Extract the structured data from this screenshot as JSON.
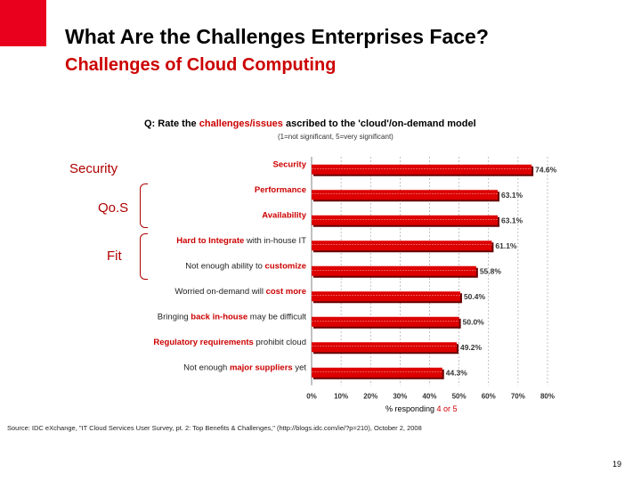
{
  "slide": {
    "title": "What Are the Challenges Enterprises Face?",
    "subtitle": "Challenges of Cloud Computing",
    "source": "Source: IDC eXchange, \"IT Cloud Services User Survey, pt. 2: Top Benefits & Challenges,\" (http://blogs.idc.com/ie/?p=210), October 2, 2008",
    "page_number": "19",
    "side_labels": {
      "security": "Security",
      "qos": "Qo.S",
      "fit": "Fit"
    },
    "colors": {
      "brand_red": "#e8001c",
      "bar_red": "#dd0000",
      "text_red": "#cc0000"
    }
  },
  "chart_data": {
    "type": "bar",
    "orientation": "horizontal",
    "title_prefix": "Q: ",
    "title_plain_1": "Rate the ",
    "title_highlight": "challenges/issues",
    "title_plain_2": " ascribed to the 'cloud'/on-demand model",
    "title_note": "(1=not significant, 5=very significant)",
    "categories": [
      "Security",
      "Performance",
      "Availability",
      "Hard to Integrate with in-house IT",
      "Not enough ability to customize",
      "Worried on-demand will cost more",
      "Bringing back in-house may be difficult",
      "Regulatory requirements prohibit cloud",
      "Not enough major suppliers yet"
    ],
    "category_parts": [
      [
        {
          "t": "Security",
          "r": true
        }
      ],
      [
        {
          "t": "Performance",
          "r": true
        }
      ],
      [
        {
          "t": "Availability",
          "r": true
        }
      ],
      [
        {
          "t": "Hard to Integrate",
          "r": true
        },
        {
          "t": " with in-house IT",
          "r": false
        }
      ],
      [
        {
          "t": "Not enough ability to ",
          "r": false
        },
        {
          "t": "customize",
          "r": true
        }
      ],
      [
        {
          "t": "Worried on-demand will ",
          "r": false
        },
        {
          "t": "cost more",
          "r": true
        }
      ],
      [
        {
          "t": "Bringing ",
          "r": false
        },
        {
          "t": "back in-house",
          "r": true
        },
        {
          "t": " may be difficult",
          "r": false
        }
      ],
      [
        {
          "t": "Regulatory requirements",
          "r": true
        },
        {
          "t": " prohibit cloud",
          "r": false
        }
      ],
      [
        {
          "t": "Not enough ",
          "r": false
        },
        {
          "t": "major suppliers",
          "r": true
        },
        {
          "t": " yet",
          "r": false
        }
      ]
    ],
    "values": [
      74.6,
      63.1,
      63.1,
      61.1,
      55.8,
      50.4,
      50.0,
      49.2,
      44.3
    ],
    "value_labels": [
      "74.6%",
      "63.1%",
      "63.1%",
      "61.1%",
      "55.8%",
      "50.4%",
      "50.0%",
      "49.2%",
      "44.3%"
    ],
    "xticks": [
      0,
      10,
      20,
      30,
      40,
      50,
      60,
      70,
      80
    ],
    "xtick_labels": [
      "0%",
      "10%",
      "20%",
      "30%",
      "40%",
      "50%",
      "60%",
      "70%",
      "80%"
    ],
    "xlim": [
      0,
      80
    ],
    "xlabel_prefix": "% responding ",
    "xlabel_highlight": "4 or 5"
  }
}
